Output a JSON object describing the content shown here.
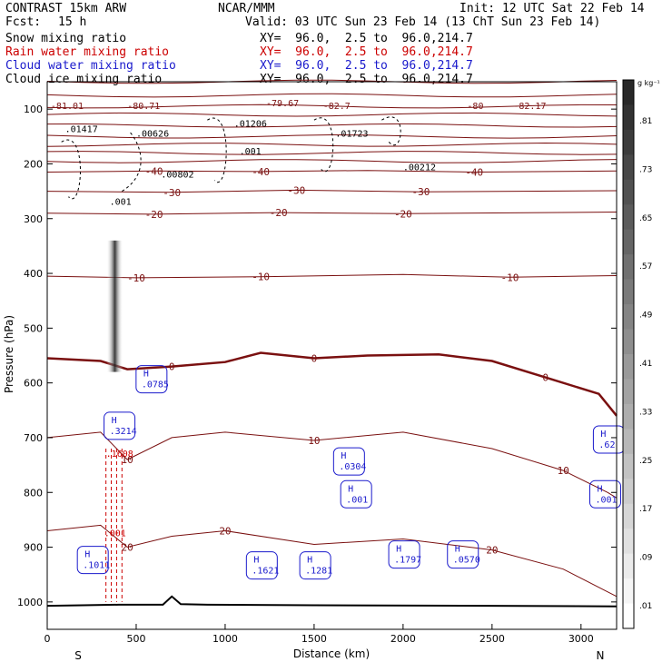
{
  "header": {
    "model": "CONTRAST 15km ARW",
    "center": "NCAR/MMM",
    "init": "Init: 12 UTC Sat 22 Feb 14",
    "fcst_label": "Fcst:",
    "fcst_value": "15 h",
    "valid": "Valid: 03 UTC Sun 23 Feb 14 (13 ChT Sun 23 Feb 14)",
    "xy": "XY=  96.0,  2.5 to  96.0,214.7"
  },
  "fields": [
    {
      "name": "Snow mixing ratio",
      "color": "#000000"
    },
    {
      "name": "Rain water mixing ratio",
      "color": "#cc0000"
    },
    {
      "name": "Cloud water mixing ratio",
      "color": "#1a1acc"
    },
    {
      "name": "Cloud ice mixing ratio",
      "color": "#000000"
    }
  ],
  "chart_data": {
    "type": "cross-section contour",
    "xlabel": "Distance (km)",
    "ylabel": "Pressure (hPa)",
    "xlim": [
      0,
      3200
    ],
    "ylim": [
      1050,
      50
    ],
    "x_ticks": [
      0,
      500,
      1000,
      1500,
      2000,
      2500,
      3000
    ],
    "y_ticks": [
      100,
      200,
      300,
      400,
      500,
      600,
      700,
      800,
      900,
      1000
    ],
    "x_end_labels": {
      "left": "S",
      "right": "N"
    },
    "colorbar": {
      "unit": "g kg⁻¹",
      "labels": [
        ".01",
        ".09",
        ".17",
        ".25",
        ".33",
        ".41",
        ".49",
        ".57",
        ".65",
        ".73",
        ".81"
      ]
    },
    "temperature_contours": [
      {
        "label": "-40",
        "points": [
          [
            0,
            215
          ],
          [
            600,
            213
          ],
          [
            1200,
            214
          ],
          [
            1800,
            212
          ],
          [
            2400,
            215
          ],
          [
            3200,
            213
          ]
        ]
      },
      {
        "label": "-30",
        "points": [
          [
            0,
            250
          ],
          [
            700,
            252
          ],
          [
            1400,
            248
          ],
          [
            2100,
            251
          ],
          [
            3200,
            249
          ]
        ]
      },
      {
        "label": "-20",
        "points": [
          [
            0,
            290
          ],
          [
            600,
            292
          ],
          [
            1300,
            289
          ],
          [
            2000,
            291
          ],
          [
            3200,
            288
          ]
        ]
      },
      {
        "label": "-10",
        "points": [
          [
            0,
            405
          ],
          [
            500,
            408
          ],
          [
            1200,
            406
          ],
          [
            2000,
            402
          ],
          [
            2600,
            407
          ],
          [
            3200,
            404
          ]
        ]
      },
      {
        "label": "0",
        "points": [
          [
            0,
            555
          ],
          [
            300,
            560
          ],
          [
            450,
            575
          ],
          [
            700,
            570
          ],
          [
            1000,
            562
          ],
          [
            1200,
            545
          ],
          [
            1500,
            555
          ],
          [
            1800,
            550
          ],
          [
            2200,
            548
          ],
          [
            2500,
            560
          ],
          [
            2800,
            590
          ],
          [
            3100,
            620
          ],
          [
            3200,
            660
          ]
        ]
      },
      {
        "label": "10",
        "points": [
          [
            0,
            700
          ],
          [
            300,
            690
          ],
          [
            450,
            740
          ],
          [
            700,
            700
          ],
          [
            1000,
            690
          ],
          [
            1500,
            705
          ],
          [
            2000,
            690
          ],
          [
            2500,
            720
          ],
          [
            2900,
            760
          ],
          [
            3150,
            800
          ],
          [
            3200,
            810
          ]
        ]
      },
      {
        "label": "20",
        "points": [
          [
            0,
            870
          ],
          [
            300,
            860
          ],
          [
            450,
            900
          ],
          [
            700,
            880
          ],
          [
            1000,
            870
          ],
          [
            1500,
            895
          ],
          [
            2000,
            885
          ],
          [
            2500,
            905
          ],
          [
            2900,
            940
          ],
          [
            3200,
            990
          ]
        ]
      }
    ],
    "upper_contours_hpa": [
      50,
      75,
      95,
      110,
      130,
      150,
      165,
      180,
      195
    ],
    "cloud_water_maxima": [
      {
        "label": ".3214",
        "x": 350,
        "p": 690
      },
      {
        "label": ".0785",
        "x": 530,
        "p": 605
      },
      {
        "label": ".1011",
        "x": 200,
        "p": 935
      },
      {
        "label": ".1621",
        "x": 1150,
        "p": 945
      },
      {
        "label": ".1281",
        "x": 1450,
        "p": 945
      },
      {
        "label": ".1797",
        "x": 1950,
        "p": 925
      },
      {
        "label": ".0570",
        "x": 2280,
        "p": 925
      },
      {
        "label": ".0304",
        "x": 1640,
        "p": 755
      },
      {
        "label": ".001",
        "x": 1680,
        "p": 815
      },
      {
        "label": ".62",
        "x": 3100,
        "p": 715
      },
      {
        "label": ".001",
        "x": 3080,
        "p": 815
      }
    ],
    "rain_water_maxima": [
      {
        "label": ".1608",
        "x": 330,
        "p": 735
      },
      {
        "label": ".001",
        "x": 320,
        "p": 880
      }
    ],
    "ice_labels": [
      {
        "label": "-81.01",
        "x": 20,
        "p": 100
      },
      {
        "label": "-80.71",
        "x": 450,
        "p": 100
      },
      {
        "label": "-79.67",
        "x": 1230,
        "p": 95
      },
      {
        "label": "-82.7",
        "x": 1550,
        "p": 100
      },
      {
        "label": "-80",
        "x": 2360,
        "p": 100
      },
      {
        "label": "-82.17",
        "x": 2620,
        "p": 100
      },
      {
        "label": ".01417",
        "x": 100,
        "p": 142
      },
      {
        "label": ".00626",
        "x": 500,
        "p": 150
      },
      {
        "label": ".01206",
        "x": 1050,
        "p": 132
      },
      {
        "label": ".001",
        "x": 1080,
        "p": 183
      },
      {
        "label": ".00802",
        "x": 640,
        "p": 225
      },
      {
        "label": ".01723",
        "x": 1620,
        "p": 150
      },
      {
        "label": ".00212",
        "x": 2000,
        "p": 212
      },
      {
        "label": ".001",
        "x": 350,
        "p": 275
      }
    ],
    "terrain_hpa": [
      [
        0,
        1007
      ],
      [
        200,
        1006
      ],
      [
        400,
        1005
      ],
      [
        650,
        1005
      ],
      [
        700,
        990
      ],
      [
        750,
        1004
      ],
      [
        900,
        1005
      ],
      [
        1500,
        1006
      ],
      [
        2500,
        1007
      ],
      [
        3200,
        1008
      ]
    ]
  }
}
